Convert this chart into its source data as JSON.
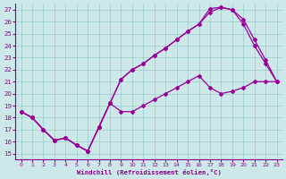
{
  "xlabel": "Windchill (Refroidissement éolien,°C)",
  "background_color": "#cce8e8",
  "line_color": "#990099",
  "xlim": [
    -0.5,
    23.5
  ],
  "ylim": [
    14.5,
    27.5
  ],
  "yticks": [
    15,
    16,
    17,
    18,
    19,
    20,
    21,
    22,
    23,
    24,
    25,
    26,
    27
  ],
  "xticks": [
    0,
    1,
    2,
    3,
    4,
    5,
    6,
    7,
    8,
    9,
    10,
    11,
    12,
    13,
    14,
    15,
    16,
    17,
    18,
    19,
    20,
    21,
    22,
    23
  ],
  "line1_x": [
    0,
    1,
    2,
    3,
    4,
    5,
    6,
    7,
    8,
    9,
    10,
    11,
    12,
    13,
    14,
    15,
    16,
    17,
    18,
    19,
    20,
    21,
    22,
    23
  ],
  "line1_y": [
    18.5,
    18.0,
    17.0,
    16.1,
    16.3,
    15.7,
    15.2,
    17.2,
    19.2,
    18.5,
    18.5,
    19.0,
    19.5,
    20.0,
    20.5,
    21.0,
    21.5,
    20.5,
    20.0,
    20.2,
    20.5,
    21.0,
    21.0,
    21.0
  ],
  "line2_x": [
    0,
    1,
    2,
    3,
    4,
    5,
    6,
    7,
    8,
    9,
    10,
    11,
    12,
    13,
    14,
    15,
    16,
    17,
    18,
    19,
    20,
    21,
    22,
    23
  ],
  "line2_y": [
    18.5,
    18.0,
    17.0,
    16.1,
    16.3,
    15.7,
    15.2,
    17.2,
    19.2,
    21.2,
    22.0,
    22.5,
    23.2,
    23.8,
    24.5,
    25.2,
    25.8,
    27.1,
    27.2,
    27.0,
    26.2,
    24.5,
    22.8,
    21.0
  ],
  "line3_x": [
    0,
    1,
    2,
    3,
    4,
    5,
    6,
    7,
    8,
    9,
    10,
    11,
    12,
    13,
    14,
    15,
    16,
    17,
    18,
    19,
    20,
    21,
    22,
    23
  ],
  "line3_y": [
    18.5,
    18.0,
    17.0,
    16.1,
    16.3,
    15.7,
    15.2,
    17.2,
    19.2,
    21.2,
    22.0,
    22.5,
    23.2,
    23.8,
    24.5,
    25.2,
    25.8,
    26.8,
    27.2,
    27.0,
    25.8,
    24.0,
    22.5,
    21.0
  ]
}
